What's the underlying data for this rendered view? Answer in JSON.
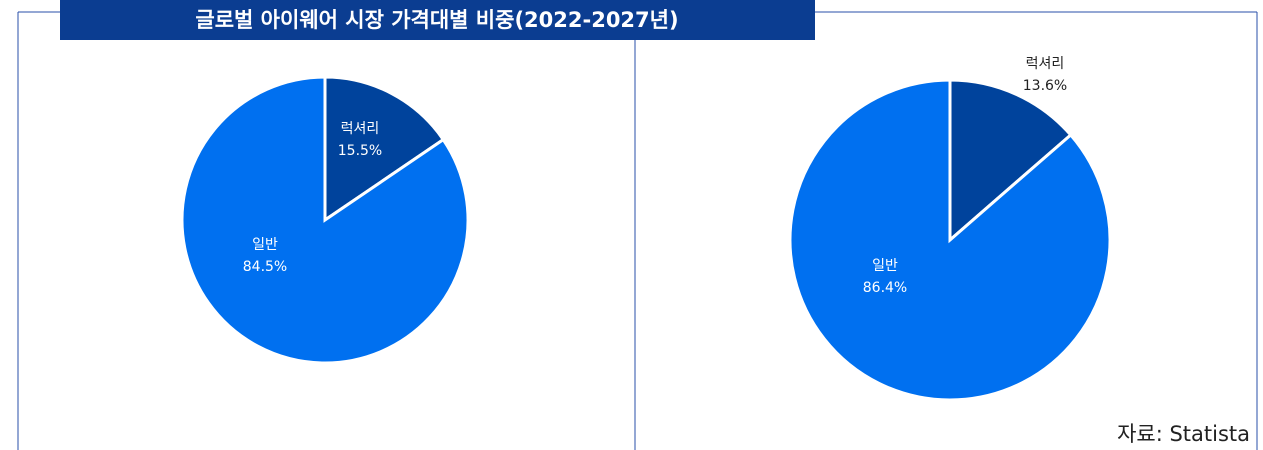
{
  "title": "글로벌 아이웨어 시장 가격대별 비중(2022-2027년)",
  "source": "자료: Statista",
  "chart_data": [
    {
      "type": "pie",
      "categories": [
        "럭셔리",
        "일반"
      ],
      "values": [
        15.5,
        84.5
      ],
      "value_labels": [
        "15.5%",
        "84.5%"
      ],
      "colors": [
        "#00439c",
        "#0070f0"
      ]
    },
    {
      "type": "pie",
      "categories": [
        "럭셔리",
        "일반"
      ],
      "values": [
        13.6,
        86.4
      ],
      "value_labels": [
        "13.6%",
        "86.4%"
      ],
      "colors": [
        "#00439c",
        "#0070f0"
      ]
    }
  ]
}
